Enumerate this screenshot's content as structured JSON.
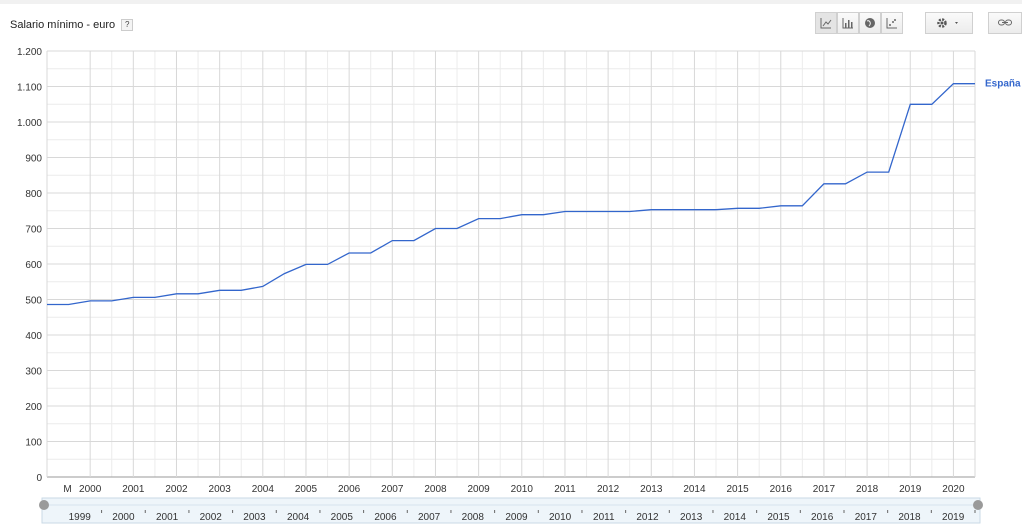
{
  "header": {
    "title": "Salario mínimo - euro",
    "help_label": "?"
  },
  "toolbar": {
    "icons": [
      "line-chart-icon",
      "bar-chart-icon",
      "map-icon",
      "scatter-chart-icon",
      "gear-icon",
      "link-icon"
    ]
  },
  "colors": {
    "series": "#3366cc",
    "grid_major": "#d8d8d8",
    "grid_minor": "#ececec",
    "timeline": "#c9d9e6"
  },
  "chart_data": {
    "type": "line",
    "title": "Salario mínimo - euro",
    "ylim": [
      0,
      1200
    ],
    "yticks": [
      0,
      100,
      200,
      300,
      400,
      500,
      600,
      700,
      800,
      900,
      1000,
      1100,
      1200
    ],
    "ytick_labels": [
      "0",
      "100",
      "200",
      "300",
      "400",
      "500",
      "600",
      "700",
      "800",
      "900",
      "1.000",
      "1.100",
      "1.200"
    ],
    "xlim": [
      1999.0,
      2020.5
    ],
    "xticks": [
      1999.5,
      2000,
      2001,
      2002,
      2003,
      2004,
      2005,
      2006,
      2007,
      2008,
      2009,
      2010,
      2011,
      2012,
      2013,
      2014,
      2015,
      2016,
      2017,
      2018,
      2019,
      2020
    ],
    "xtick_labels": [
      "M",
      "2000",
      "2001",
      "2002",
      "2003",
      "2004",
      "2005",
      "2006",
      "2007",
      "2008",
      "2009",
      "2010",
      "2011",
      "2012",
      "2013",
      "2014",
      "2015",
      "2016",
      "2017",
      "2018",
      "2019",
      "2020"
    ],
    "grid": true,
    "legend": "right",
    "series": [
      {
        "name": "España",
        "color": "#3366cc",
        "x": [
          1999.0,
          1999.5,
          2000.0,
          2000.5,
          2001.0,
          2001.5,
          2002.0,
          2002.5,
          2003.0,
          2003.5,
          2004.0,
          2004.5,
          2005.0,
          2005.5,
          2006.0,
          2006.5,
          2007.0,
          2007.5,
          2008.0,
          2008.5,
          2009.0,
          2009.5,
          2010.0,
          2010.5,
          2011.0,
          2011.5,
          2012.0,
          2012.5,
          2013.0,
          2013.5,
          2014.0,
          2014.5,
          2015.0,
          2015.5,
          2016.0,
          2016.5,
          2017.0,
          2017.5,
          2018.0,
          2018.5,
          2019.0,
          2019.5,
          2020.0,
          2020.5
        ],
        "y": [
          486,
          486,
          496,
          496,
          506,
          506,
          516,
          516,
          526,
          526,
          537,
          573,
          599,
          599,
          631,
          631,
          666,
          666,
          700,
          700,
          728,
          728,
          739,
          739,
          748,
          748,
          748,
          748,
          753,
          753,
          753,
          753,
          757,
          757,
          764,
          764,
          826,
          826,
          859,
          859,
          1050,
          1050,
          1108,
          1108
        ]
      }
    ],
    "timeline_labels": [
      "1999",
      "2000",
      "2001",
      "2002",
      "2003",
      "2004",
      "2005",
      "2006",
      "2007",
      "2008",
      "2009",
      "2010",
      "2011",
      "2012",
      "2013",
      "2014",
      "2015",
      "2016",
      "2017",
      "2018",
      "2019"
    ]
  }
}
